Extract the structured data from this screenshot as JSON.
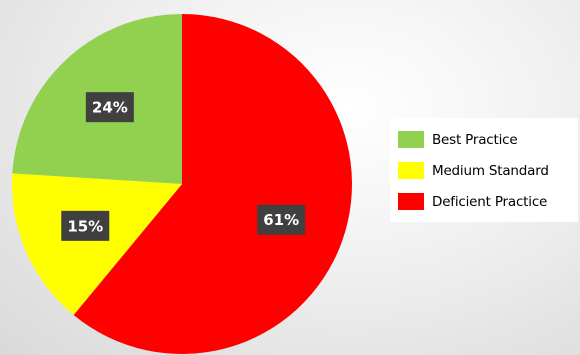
{
  "chart_data": {
    "type": "pie",
    "slices": [
      {
        "label": "Deficient Practice",
        "value": 61,
        "color": "#ff0000",
        "data_label": "61%"
      },
      {
        "label": "Medium Standard",
        "value": 15,
        "color": "#ffff00",
        "data_label": "15%"
      },
      {
        "label": "Best Practice",
        "value": 24,
        "color": "#92d050",
        "data_label": "24%"
      }
    ],
    "legend_position": "right",
    "start": "top, clockwise"
  },
  "legend": {
    "items": [
      {
        "label": "Best Practice",
        "color": "#92d050"
      },
      {
        "label": "Medium Standard",
        "color": "#ffff00"
      },
      {
        "label": "Deficient Practice",
        "color": "#ff0000"
      }
    ]
  }
}
